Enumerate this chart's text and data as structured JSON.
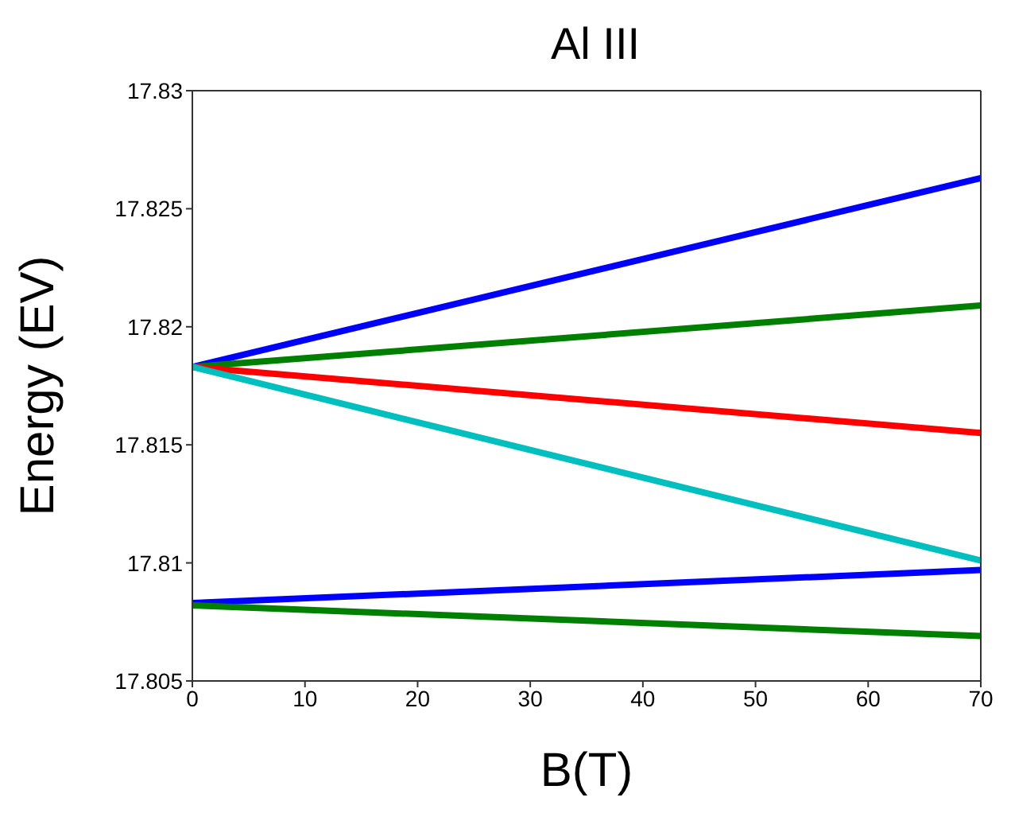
{
  "chart_data": {
    "type": "line",
    "title": "Al III",
    "xlabel": "B(T)",
    "ylabel": "Energy (EV)",
    "x": [
      0,
      70
    ],
    "series": [
      {
        "color": "#0000ff",
        "values": [
          17.8183,
          17.8263
        ]
      },
      {
        "color": "#008000",
        "values": [
          17.8183,
          17.8209
        ]
      },
      {
        "color": "#ff0000",
        "values": [
          17.8183,
          17.8155
        ]
      },
      {
        "color": "#00bfbf",
        "values": [
          17.8183,
          17.8101
        ]
      },
      {
        "color": "#0000ff",
        "values": [
          17.8083,
          17.8097
        ]
      },
      {
        "color": "#008000",
        "values": [
          17.8082,
          17.8069
        ]
      }
    ],
    "xlim": [
      0,
      70
    ],
    "xticks": [
      0,
      10,
      20,
      30,
      40,
      50,
      60,
      70
    ],
    "ylim": [
      17.805,
      17.83
    ],
    "yticks": [
      17.805,
      17.81,
      17.815,
      17.82,
      17.825,
      17.83
    ],
    "marker": "none",
    "line_style": "solid"
  }
}
